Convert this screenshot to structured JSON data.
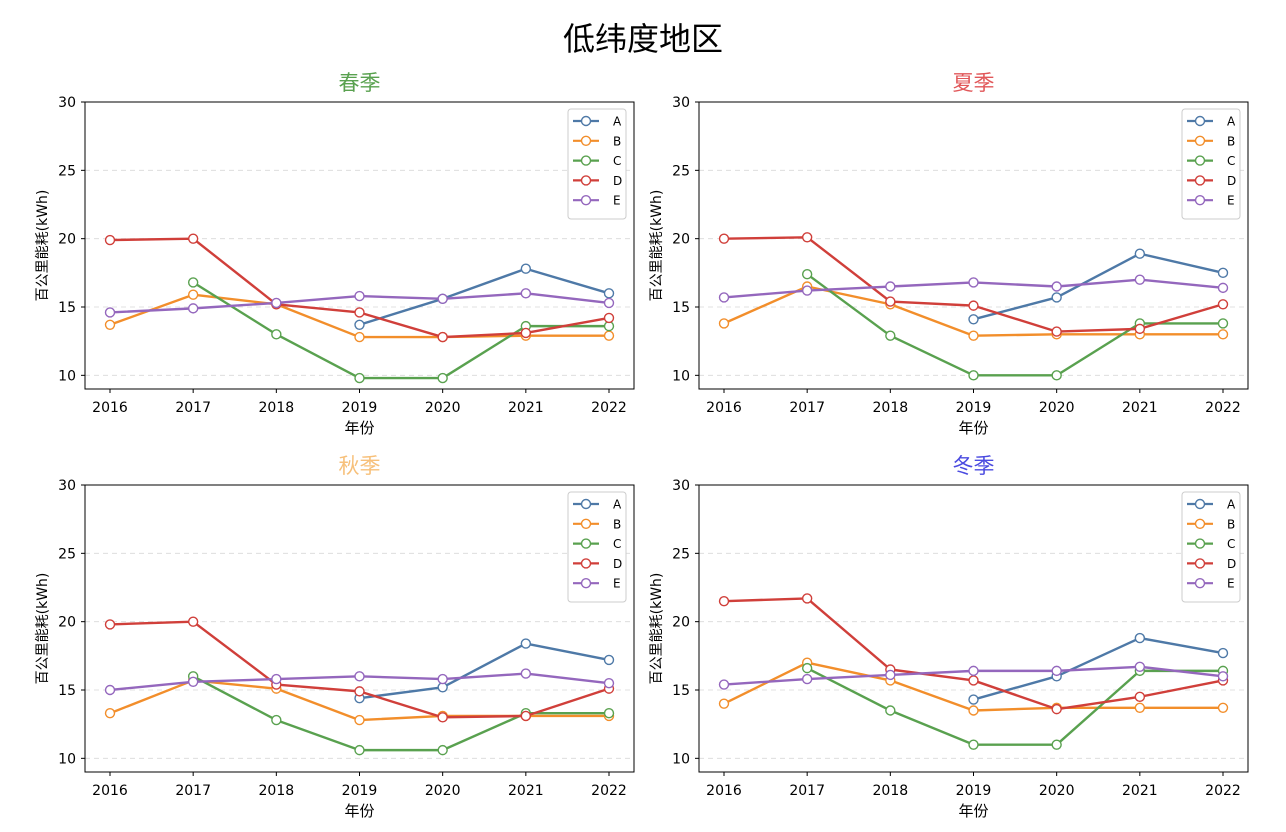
{
  "suptitle": "低纬度地区",
  "chart_data": [
    {
      "type": "line",
      "title": "春季",
      "title_color": "#59a14f",
      "xlabel": "年份",
      "ylabel": "百公里能耗(kWh)",
      "ylim": [
        9,
        30
      ],
      "yticks": [
        10,
        15,
        20,
        25,
        30
      ],
      "grid": "horizontal dashed",
      "legend": "top-right",
      "x": [
        "2016",
        "2017",
        "2018",
        "2019",
        "2020",
        "2021",
        "2022"
      ],
      "series": [
        {
          "name": "A",
          "color": "#4e79a7",
          "values": [
            null,
            null,
            null,
            13.7,
            15.6,
            17.8,
            16.0
          ]
        },
        {
          "name": "B",
          "color": "#f28e2b",
          "values": [
            13.7,
            15.9,
            15.2,
            12.8,
            12.8,
            12.9,
            12.9
          ]
        },
        {
          "name": "C",
          "color": "#59a14f",
          "values": [
            null,
            16.8,
            13.0,
            9.8,
            9.8,
            13.6,
            13.6
          ]
        },
        {
          "name": "D",
          "color": "#d03f3a",
          "values": [
            19.9,
            20.0,
            15.2,
            14.6,
            12.8,
            13.1,
            14.2
          ]
        },
        {
          "name": "E",
          "color": "#9467bd",
          "values": [
            14.6,
            14.9,
            15.3,
            15.8,
            15.6,
            16.0,
            15.3
          ]
        }
      ]
    },
    {
      "type": "line",
      "title": "夏季",
      "title_color": "#e15759",
      "xlabel": "年份",
      "ylabel": "百公里能耗(kWh)",
      "ylim": [
        9,
        30
      ],
      "yticks": [
        10,
        15,
        20,
        25,
        30
      ],
      "grid": "horizontal dashed",
      "legend": "top-right",
      "x": [
        "2016",
        "2017",
        "2018",
        "2019",
        "2020",
        "2021",
        "2022"
      ],
      "series": [
        {
          "name": "A",
          "color": "#4e79a7",
          "values": [
            null,
            null,
            null,
            14.1,
            15.7,
            18.9,
            17.5
          ]
        },
        {
          "name": "B",
          "color": "#f28e2b",
          "values": [
            13.8,
            16.5,
            15.2,
            12.9,
            13.0,
            13.0,
            13.0
          ]
        },
        {
          "name": "C",
          "color": "#59a14f",
          "values": [
            null,
            17.4,
            12.9,
            10.0,
            10.0,
            13.8,
            13.8
          ]
        },
        {
          "name": "D",
          "color": "#d03f3a",
          "values": [
            20.0,
            20.1,
            15.4,
            15.1,
            13.2,
            13.4,
            15.2
          ]
        },
        {
          "name": "E",
          "color": "#9467bd",
          "values": [
            15.7,
            16.2,
            16.5,
            16.8,
            16.5,
            17.0,
            16.4
          ]
        }
      ]
    },
    {
      "type": "line",
      "title": "秋季",
      "title_color": "#f7c07a",
      "xlabel": "年份",
      "ylabel": "百公里能耗(kWh)",
      "ylim": [
        9,
        30
      ],
      "yticks": [
        10,
        15,
        20,
        25,
        30
      ],
      "grid": "horizontal dashed",
      "legend": "top-right",
      "x": [
        "2016",
        "2017",
        "2018",
        "2019",
        "2020",
        "2021",
        "2022"
      ],
      "series": [
        {
          "name": "A",
          "color": "#4e79a7",
          "values": [
            null,
            null,
            null,
            14.4,
            15.2,
            18.4,
            17.2
          ]
        },
        {
          "name": "B",
          "color": "#f28e2b",
          "values": [
            13.3,
            15.7,
            15.1,
            12.8,
            13.1,
            13.1,
            13.1
          ]
        },
        {
          "name": "C",
          "color": "#59a14f",
          "values": [
            null,
            16.0,
            12.8,
            10.6,
            10.6,
            13.3,
            13.3
          ]
        },
        {
          "name": "D",
          "color": "#d03f3a",
          "values": [
            19.8,
            20.0,
            15.4,
            14.9,
            13.0,
            13.1,
            15.1
          ]
        },
        {
          "name": "E",
          "color": "#9467bd",
          "values": [
            15.0,
            15.6,
            15.8,
            16.0,
            15.8,
            16.2,
            15.5
          ]
        }
      ]
    },
    {
      "type": "line",
      "title": "冬季",
      "title_color": "#4b4be0",
      "xlabel": "年份",
      "ylabel": "百公里能耗(kWh)",
      "ylim": [
        9,
        30
      ],
      "yticks": [
        10,
        15,
        20,
        25,
        30
      ],
      "grid": "horizontal dashed",
      "legend": "top-right",
      "x": [
        "2016",
        "2017",
        "2018",
        "2019",
        "2020",
        "2021",
        "2022"
      ],
      "series": [
        {
          "name": "A",
          "color": "#4e79a7",
          "values": [
            null,
            null,
            null,
            14.3,
            16.0,
            18.8,
            17.7
          ]
        },
        {
          "name": "B",
          "color": "#f28e2b",
          "values": [
            14.0,
            17.0,
            15.7,
            13.5,
            13.7,
            13.7,
            13.7
          ]
        },
        {
          "name": "C",
          "color": "#59a14f",
          "values": [
            null,
            16.6,
            13.5,
            11.0,
            11.0,
            16.4,
            16.4
          ]
        },
        {
          "name": "D",
          "color": "#d03f3a",
          "values": [
            21.5,
            21.7,
            16.5,
            15.7,
            13.6,
            14.5,
            15.7
          ]
        },
        {
          "name": "E",
          "color": "#9467bd",
          "values": [
            15.4,
            15.8,
            16.1,
            16.4,
            16.4,
            16.7,
            16.0
          ]
        }
      ]
    }
  ]
}
